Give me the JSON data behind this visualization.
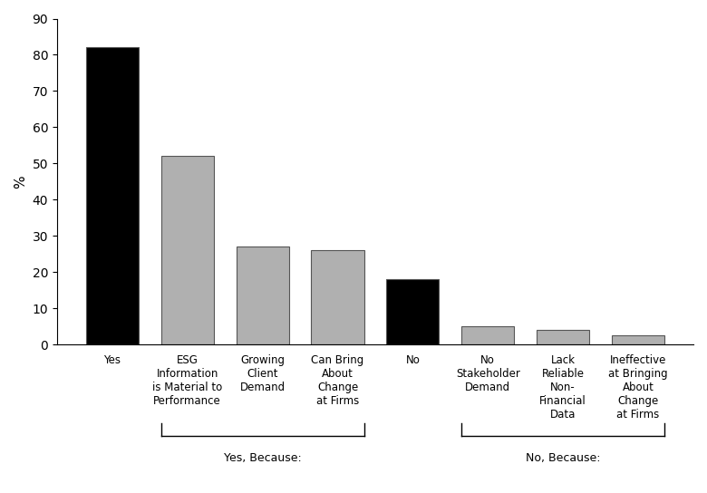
{
  "categories": [
    "Yes",
    "ESG\nInformation\nis Material to\nPerformance",
    "Growing\nClient\nDemand",
    "Can Bring\nAbout\nChange\nat Firms",
    "No",
    "No\nStakeholder\nDemand",
    "Lack\nReliable\nNon-\nFinancial\nData",
    "Ineffective\nat Bringing\nAbout\nChange\nat Firms"
  ],
  "values": [
    82,
    52,
    27,
    26,
    18,
    5,
    4,
    2.5
  ],
  "bar_colors": [
    "#000000",
    "#b0b0b0",
    "#b0b0b0",
    "#b0b0b0",
    "#000000",
    "#b0b0b0",
    "#b0b0b0",
    "#b0b0b0"
  ],
  "ylabel": "%",
  "ylim": [
    0,
    90
  ],
  "yticks": [
    0,
    10,
    20,
    30,
    40,
    50,
    60,
    70,
    80,
    90
  ],
  "yes_because_label": "Yes, Because:",
  "no_because_label": "No, Because:",
  "yes_because_span": [
    1,
    3
  ],
  "no_because_span": [
    5,
    7
  ],
  "background_color": "#ffffff",
  "bar_edgecolor": "#555555",
  "bar_width": 0.7
}
